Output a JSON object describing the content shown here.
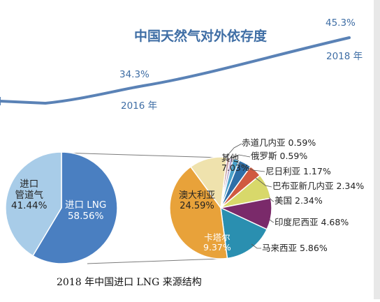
{
  "line_chart": {
    "title": "中国天然气对外依存度",
    "point_2016": {
      "value": "34.3%",
      "year": "2016 年"
    },
    "point_2018": {
      "value": "45.3%",
      "year": "2018 年"
    }
  },
  "caption": "2018 年中国进口 LNG 来源结构",
  "left_pie": {
    "slices": [
      {
        "name": "进口 LNG",
        "value": "58.56%",
        "color": "#4a7fc1"
      },
      {
        "name": "进口管道气",
        "line1": "进口",
        "line2": "管道气",
        "value": "41.44%",
        "color": "#a8cce8"
      }
    ]
  },
  "right_pie": {
    "slices": [
      {
        "name": "澳大利亚",
        "value": "24.59%",
        "color": "#e8a23a"
      },
      {
        "name": "卡塔尔",
        "value": "9.37%",
        "color": "#2a8fb0"
      },
      {
        "name": "马来西亚",
        "value": "5.86%",
        "color": "#7a2a6a"
      },
      {
        "name": "印度尼西亚",
        "value": "4.68%",
        "color": "#d8d86a"
      },
      {
        "name": "美国",
        "value": "2.34%",
        "color": "#d05a40"
      },
      {
        "name": "巴布亚新几内亚",
        "value": "2.34%",
        "color": "#2e6fa8"
      },
      {
        "name": "尼日利亚",
        "value": "1.17%",
        "color": "#4aa0c8"
      },
      {
        "name": "俄罗斯",
        "value": "0.59%",
        "color": "#b8a8d0"
      },
      {
        "name": "赤道几内亚",
        "value": "0.59%",
        "color": "#c8a0a0"
      },
      {
        "name": "其他",
        "value": "7.03%",
        "color": "#efe2ad"
      }
    ]
  },
  "chart_data": [
    {
      "type": "line",
      "title": "中国天然气对外依存度",
      "x": [
        "2016",
        "2018"
      ],
      "series": [
        {
          "values": [
            34.3,
            45.3
          ]
        }
      ]
    },
    {
      "type": "pie",
      "title": "2018 年中国进口 LNG 来源结构",
      "categories": [
        "进口 LNG",
        "进口管道气"
      ],
      "values": [
        58.56,
        41.44
      ]
    },
    {
      "type": "pie",
      "categories": [
        "澳大利亚",
        "卡塔尔",
        "马来西亚",
        "印度尼西亚",
        "美国",
        "巴布亚新几内亚",
        "尼日利亚",
        "俄罗斯",
        "赤道几内亚",
        "其他"
      ],
      "values": [
        24.59,
        9.37,
        5.86,
        4.68,
        2.34,
        2.34,
        1.17,
        0.59,
        0.59,
        7.03
      ]
    }
  ]
}
